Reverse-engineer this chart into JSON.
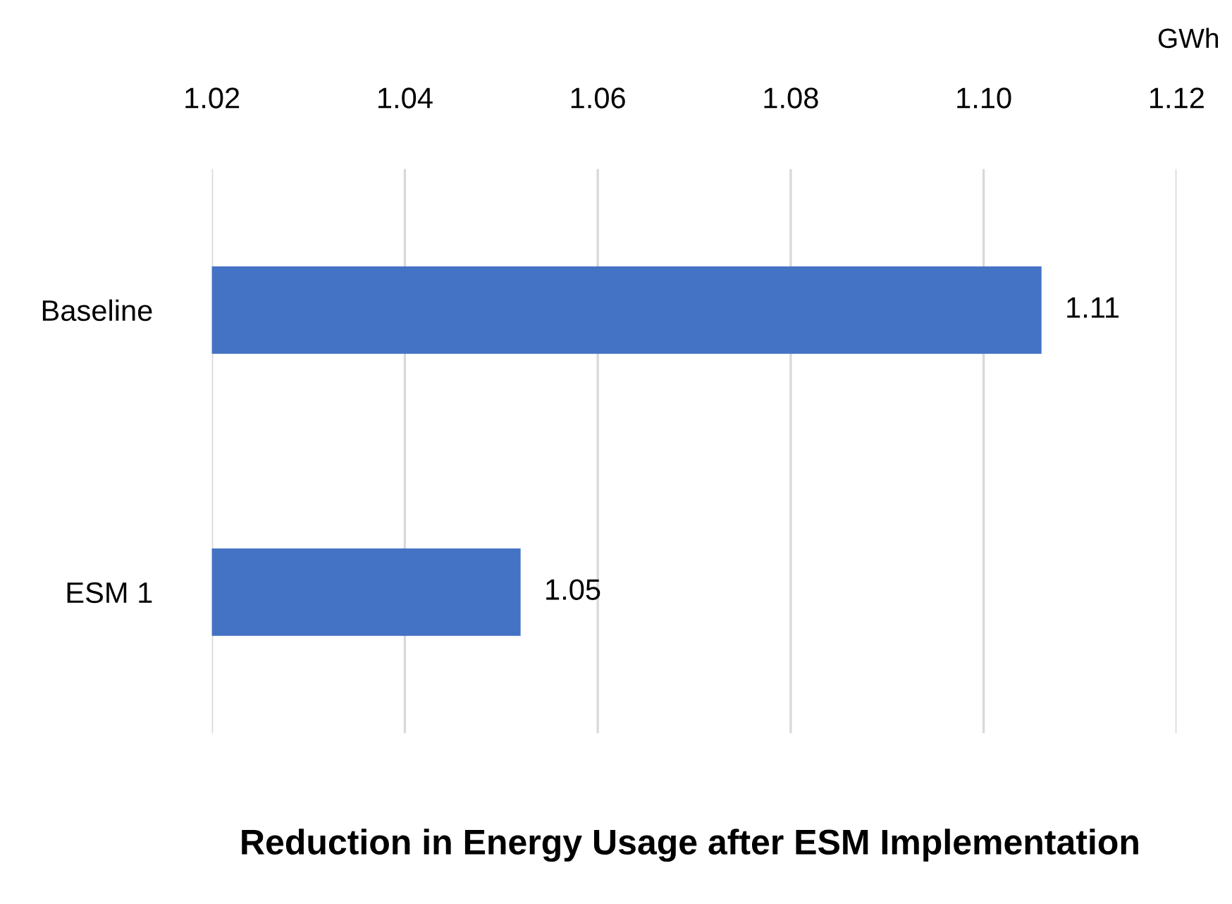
{
  "chart_data": {
    "type": "bar",
    "orientation": "horizontal",
    "title": "Reduction in Energy Usage after ESM Implementation",
    "xlabel": "GWh",
    "categories": [
      "Baseline",
      "ESM 1"
    ],
    "values": [
      1.106,
      1.052
    ],
    "color": "#4472c4",
    "value_labels": [
      "1.11",
      "1.05"
    ],
    "xlim": [
      1.02,
      1.12
    ],
    "xticks": [
      {
        "value": 1.02,
        "label": "1.02"
      },
      {
        "value": 1.04,
        "label": "1.04"
      },
      {
        "value": 1.06,
        "label": "1.06"
      },
      {
        "value": 1.08,
        "label": "1.08"
      },
      {
        "value": 1.1,
        "label": "1.10"
      },
      {
        "value": 1.12,
        "label": "1.12"
      }
    ],
    "grid": "x",
    "legend": false
  }
}
